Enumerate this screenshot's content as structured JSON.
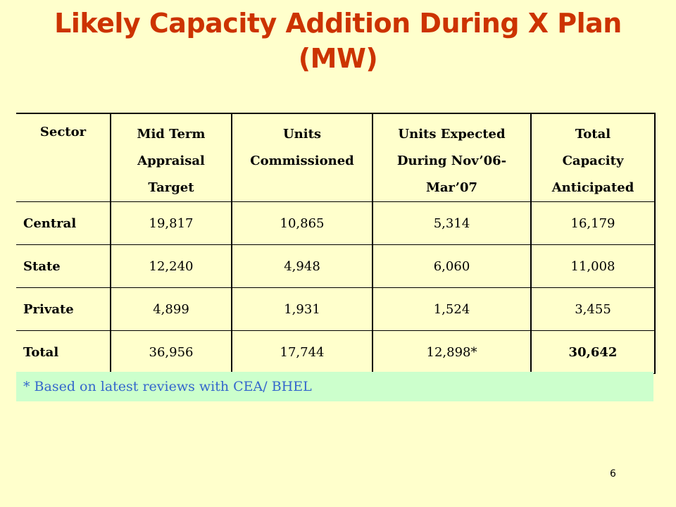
{
  "title": {
    "line1": "Likely Capacity Addition  During X Plan",
    "line2": "(MW)"
  },
  "table": {
    "headers": [
      [
        "Sector"
      ],
      [
        "Mid Term",
        "Appraisal",
        "Target"
      ],
      [
        "Units",
        "Commissioned"
      ],
      [
        "Units Expected",
        "During  Nov’06-",
        "Mar’07"
      ],
      [
        "Total",
        "Capacity",
        "Anticipated"
      ]
    ],
    "rows": [
      [
        "Central",
        "19,817",
        "10,865",
        "5,314",
        "16,179"
      ],
      [
        "State",
        "12,240",
        "4,948",
        "6,060",
        "11,008"
      ],
      [
        "Private",
        "4,899",
        "1,931",
        "1,524",
        "3,455"
      ],
      [
        "Total",
        "36,956",
        "17,744",
        "12,898*",
        "30,642"
      ]
    ]
  },
  "footnote": "* Based on latest reviews with CEA/ BHEL",
  "page_number": "6",
  "colors": {
    "background": "#ffffcc",
    "title": "#cc3300",
    "footnote_background": "#ccffcc",
    "footnote_text": "#3366cc"
  }
}
